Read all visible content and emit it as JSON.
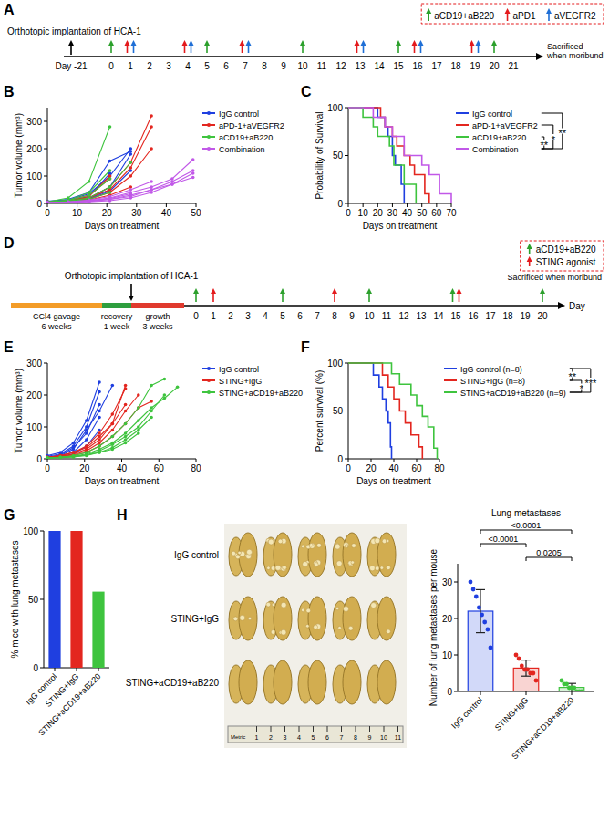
{
  "timelines": [
    {
      "panel": "A",
      "start_label": "Orthotopic implantation of HCA-1",
      "start_day": "Day -21",
      "end_label": "Sacrificed when moribund",
      "days": [
        0,
        1,
        2,
        3,
        4,
        5,
        6,
        7,
        8,
        9,
        10,
        11,
        12,
        13,
        14,
        15,
        16,
        17,
        18,
        19,
        20,
        21
      ],
      "treatments": [
        {
          "name": "aCD19+aB220",
          "color": "#2ca02c",
          "days": [
            0,
            5,
            10,
            15,
            20
          ]
        },
        {
          "name": "aPD1",
          "color": "#e41a1c",
          "days": [
            1,
            4,
            7,
            13,
            16,
            19
          ]
        },
        {
          "name": "aVEGFR2",
          "color": "#1f6fd6",
          "days": [
            1,
            4,
            7,
            13,
            16,
            19
          ]
        }
      ]
    },
    {
      "panel": "D",
      "phases": [
        {
          "label": "CCl4 gavage",
          "duration": "6 weeks",
          "color": "#f39c28"
        },
        {
          "label": "recovery",
          "duration": "1 week",
          "color": "#2e9e3e"
        },
        {
          "label": "growth",
          "duration": "3 weeks",
          "color": "#e03a2e"
        }
      ],
      "start_label": "Orthotopic implantation of HCA-1",
      "end_label": "Sacrificed when moribund",
      "axis_label": "Day",
      "days": [
        0,
        1,
        2,
        3,
        4,
        5,
        6,
        7,
        8,
        9,
        10,
        11,
        12,
        13,
        14,
        15,
        16,
        17,
        18,
        19,
        20
      ],
      "treatments": [
        {
          "name": "aCD19+aB220",
          "color": "#2ca02c",
          "days": [
            0,
            5,
            10,
            15,
            20
          ]
        },
        {
          "name": "STING agonist",
          "color": "#e41a1c",
          "days": [
            1,
            8,
            15
          ]
        }
      ]
    }
  ],
  "chart_data": [
    {
      "panel": "B",
      "type": "line",
      "marker": "circle",
      "legend": "right",
      "ylabel": "Tumor volume (mm³)",
      "xlabel": "Days on treatment",
      "x": [
        0,
        7,
        14,
        21,
        28,
        35,
        42,
        49
      ],
      "xlim": [
        0,
        50
      ],
      "xticks": [
        0,
        10,
        20,
        30,
        40,
        50
      ],
      "ylim": [
        0,
        350
      ],
      "yticks": [
        0,
        100,
        200,
        300
      ],
      "series": [
        {
          "name": "IgG control",
          "color": "#1f3fe0",
          "values": [
            [
              8,
              15,
              40,
              155,
              190,
              null,
              null,
              null
            ],
            [
              5,
              12,
              35,
              100,
              200,
              null,
              null,
              null
            ],
            [
              6,
              10,
              20,
              60,
              180,
              null,
              null,
              null
            ],
            [
              5,
              10,
              25,
              110,
              null,
              null,
              null,
              null
            ],
            [
              4,
              8,
              15,
              45,
              120,
              null,
              null,
              null
            ],
            [
              5,
              9,
              18,
              50,
              null,
              null,
              null,
              null
            ]
          ]
        },
        {
          "name": "aPD-1+aVEGFR2",
          "color": "#e3261f",
          "values": [
            [
              5,
              10,
              30,
              90,
              null,
              null,
              null,
              null
            ],
            [
              5,
              10,
              20,
              60,
              150,
              320,
              null,
              null
            ],
            [
              4,
              8,
              20,
              50,
              130,
              280,
              null,
              null
            ],
            [
              5,
              8,
              15,
              40,
              100,
              200,
              null,
              null
            ],
            [
              4,
              7,
              12,
              30,
              60,
              null,
              null,
              null
            ],
            [
              6,
              10,
              25,
              100,
              null,
              null,
              null,
              null
            ]
          ]
        },
        {
          "name": "aCD19+aB220",
          "color": "#3ec43e",
          "values": [
            [
              6,
              20,
              80,
              280,
              null,
              null,
              null,
              null
            ],
            [
              5,
              12,
              40,
              120,
              null,
              null,
              null,
              null
            ],
            [
              5,
              10,
              30,
              90,
              null,
              null,
              null,
              null
            ],
            [
              4,
              8,
              20,
              60,
              150,
              null,
              null,
              null
            ],
            [
              4,
              8,
              15,
              40,
              null,
              null,
              null,
              null
            ]
          ]
        },
        {
          "name": "Combination",
          "color": "#c158e8",
          "values": [
            [
              3,
              5,
              10,
              20,
              40,
              60,
              90,
              160
            ],
            [
              3,
              5,
              8,
              15,
              30,
              50,
              80,
              120
            ],
            [
              2,
              4,
              6,
              10,
              20,
              40,
              70,
              110
            ],
            [
              3,
              6,
              12,
              25,
              50,
              80,
              null,
              null
            ],
            [
              2,
              4,
              8,
              15,
              25,
              50,
              70,
              95
            ],
            [
              3,
              5,
              9,
              18,
              35,
              null,
              null,
              null
            ]
          ]
        }
      ]
    },
    {
      "panel": "C",
      "type": "line",
      "line_style": "step",
      "legend": "right",
      "ylabel": "Probability of Survival",
      "xlabel": "Days on treatment",
      "xlim": [
        0,
        70
      ],
      "xticks": [
        0,
        10,
        20,
        30,
        40,
        50,
        60,
        70
      ],
      "ylim": [
        0,
        100
      ],
      "yticks": [
        0,
        50,
        100
      ],
      "series": [
        {
          "name": "IgG control",
          "color": "#1f3fe0",
          "x": [
            0,
            20,
            25,
            27,
            30,
            32,
            36,
            38
          ],
          "values": [
            100,
            90,
            80,
            70,
            50,
            40,
            20,
            0
          ]
        },
        {
          "name": "aPD-1+aVEGFR2",
          "color": "#e3261f",
          "x": [
            0,
            22,
            25,
            30,
            33,
            38,
            42,
            45,
            52,
            55
          ],
          "values": [
            100,
            90,
            80,
            70,
            60,
            50,
            40,
            30,
            10,
            0
          ]
        },
        {
          "name": "aCD19+aB220",
          "color": "#3ec43e",
          "x": [
            0,
            10,
            17,
            20,
            28,
            31,
            38,
            46
          ],
          "values": [
            100,
            90,
            80,
            70,
            60,
            40,
            20,
            0
          ]
        },
        {
          "name": "Combination",
          "color": "#c158e8",
          "x": [
            0,
            17,
            25,
            30,
            38,
            50,
            55,
            62,
            70
          ],
          "values": [
            100,
            90,
            80,
            70,
            50,
            40,
            30,
            10,
            0
          ]
        }
      ],
      "annotations": [
        {
          "text": "**",
          "groups": [
            "IgG control",
            "Combination"
          ]
        },
        {
          "text": "*",
          "groups": [
            "aPD-1+aVEGFR2",
            "Combination"
          ]
        },
        {
          "text": "**",
          "groups": [
            "aCD19+aB220",
            "Combination"
          ]
        }
      ]
    },
    {
      "panel": "E",
      "type": "line",
      "marker": "circle",
      "legend": "right",
      "ylabel": "Tumor volume (mm³)",
      "xlabel": "Days on treatment",
      "x": [
        0,
        7,
        14,
        21,
        28,
        35,
        42,
        49,
        56,
        63,
        70
      ],
      "xlim": [
        0,
        80
      ],
      "xticks": [
        0,
        20,
        40,
        60,
        80
      ],
      "ylim": [
        0,
        300
      ],
      "yticks": [
        0,
        100,
        200,
        300
      ],
      "series": [
        {
          "name": "IgG control",
          "color": "#1f3fe0",
          "values": [
            [
              10,
              20,
              50,
              120,
              240,
              null,
              null,
              null,
              null,
              null,
              null
            ],
            [
              8,
              15,
              40,
              100,
              210,
              null,
              null,
              null,
              null,
              null,
              null
            ],
            [
              5,
              12,
              35,
              80,
              170,
              null,
              null,
              null,
              null,
              null,
              null
            ],
            [
              5,
              10,
              30,
              90,
              150,
              230,
              null,
              null,
              null,
              null,
              null
            ],
            [
              5,
              10,
              20,
              60,
              130,
              null,
              null,
              null,
              null,
              null,
              null
            ],
            [
              4,
              8,
              15,
              40,
              90,
              null,
              null,
              null,
              null,
              null,
              null
            ]
          ]
        },
        {
          "name": "STING+IgG",
          "color": "#e3261f",
          "values": [
            [
              5,
              10,
              20,
              40,
              80,
              140,
              220,
              null,
              null,
              null,
              null
            ],
            [
              4,
              8,
              15,
              30,
              60,
              110,
              230,
              null,
              null,
              null,
              null
            ],
            [
              5,
              10,
              20,
              35,
              70,
              110,
              170,
              null,
              null,
              null,
              null
            ],
            [
              4,
              7,
              12,
              25,
              50,
              90,
              150,
              200,
              null,
              null,
              null
            ],
            [
              3,
              6,
              10,
              20,
              40,
              70,
              110,
              160,
              180,
              null,
              null
            ]
          ]
        },
        {
          "name": "STING+aCD19+aB220",
          "color": "#3ec43e",
          "values": [
            [
              3,
              5,
              10,
              20,
              40,
              70,
              110,
              160,
              230,
              250,
              null
            ],
            [
              3,
              5,
              8,
              15,
              30,
              50,
              80,
              120,
              160,
              190,
              225
            ],
            [
              2,
              4,
              6,
              12,
              25,
              45,
              70,
              100,
              150,
              200,
              null
            ],
            [
              2,
              4,
              6,
              10,
              20,
              35,
              60,
              90,
              130,
              null,
              null
            ],
            [
              3,
              5,
              8,
              12,
              20,
              30,
              50,
              80,
              null,
              null,
              null
            ]
          ]
        }
      ]
    },
    {
      "panel": "F",
      "type": "line",
      "line_style": "step",
      "legend": "right",
      "ylabel": "Percent survival (%)",
      "xlabel": "Days on treatment",
      "xlim": [
        0,
        80
      ],
      "xticks": [
        0,
        20,
        40,
        60,
        80
      ],
      "ylim": [
        0,
        100
      ],
      "yticks": [
        0,
        50,
        100
      ],
      "series": [
        {
          "name": "IgG control (n=8)",
          "color": "#1f3fe0",
          "x": [
            0,
            22,
            27,
            30,
            33,
            35,
            37,
            38
          ],
          "values": [
            100,
            87.5,
            75,
            62.5,
            50,
            37.5,
            12.5,
            0
          ]
        },
        {
          "name": "STING+IgG (n=8)",
          "color": "#e3261f",
          "x": [
            0,
            30,
            35,
            40,
            45,
            50,
            55,
            62,
            65
          ],
          "values": [
            100,
            87.5,
            75,
            62.5,
            50,
            37.5,
            25,
            12.5,
            0
          ]
        },
        {
          "name": "STING+aCD19+aB220 (n=9)",
          "color": "#3ec43e",
          "x": [
            0,
            38,
            45,
            55,
            60,
            65,
            70,
            75,
            78
          ],
          "values": [
            100,
            88.9,
            77.8,
            66.7,
            55.6,
            44.4,
            33.3,
            11.1,
            0
          ]
        }
      ],
      "annotations": [
        {
          "text": "**",
          "groups": [
            "IgG control (n=8)",
            "STING+IgG (n=8)"
          ]
        },
        {
          "text": "***",
          "groups": [
            "IgG control (n=8)",
            "STING+aCD19+aB220 (n=9)"
          ]
        },
        {
          "text": "*",
          "groups": [
            "STING+IgG (n=8)",
            "STING+aCD19+aB220 (n=9)"
          ]
        }
      ]
    },
    {
      "panel": "G",
      "type": "bar",
      "ylabel": "% mice with lung metastases",
      "categories": [
        "IgG control",
        "STING+IgG",
        "STING+aCD19+aB220"
      ],
      "values": [
        100,
        100,
        55.6
      ],
      "colors": [
        "#1f3fe0",
        "#e3261f",
        "#3ec43e"
      ],
      "ylim": [
        0,
        100
      ],
      "yticks": [
        0,
        50,
        100
      ]
    },
    {
      "type": "bar",
      "title": "Lung metastases",
      "ylabel": "Number of lung metastases per mouse",
      "categories": [
        "IgG control",
        "STING+IgG",
        "STING+aCD19+aB220"
      ],
      "values": [
        22,
        6.4,
        1.1
      ],
      "errors": [
        5.9,
        2.2,
        1.1
      ],
      "points": [
        [
          30,
          28,
          26,
          23,
          21,
          19,
          17,
          12
        ],
        [
          10,
          9,
          7,
          6,
          6,
          5,
          5,
          3
        ],
        [
          3,
          2,
          2,
          1,
          1,
          1,
          0,
          0,
          0
        ]
      ],
      "colors": [
        "#1f3fe0",
        "#e3261f",
        "#3ec43e"
      ],
      "ylim": [
        0,
        35
      ],
      "yticks": [
        0,
        10,
        20,
        30
      ],
      "annotations": [
        {
          "text": "<0.0001",
          "groups": [
            "IgG control",
            "STING+aCD19+aB220"
          ]
        },
        {
          "text": "<0.0001",
          "groups": [
            "IgG control",
            "STING+IgG"
          ]
        },
        {
          "text": "0.0205",
          "groups": [
            "STING+IgG",
            "STING+aCD19+aB220"
          ]
        }
      ]
    }
  ],
  "photo": {
    "panel": "H",
    "rows": [
      "IgG control",
      "STING+IgG",
      "STING+aCD19+aB220"
    ],
    "ruler": {
      "label": "Metric",
      "marks": [
        1,
        2,
        3,
        4,
        5,
        6,
        7,
        8,
        9,
        10,
        11
      ]
    }
  }
}
